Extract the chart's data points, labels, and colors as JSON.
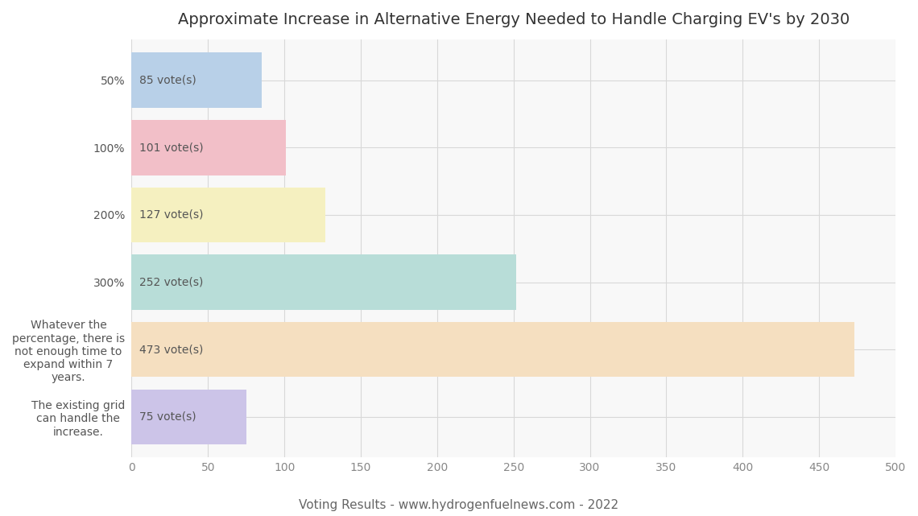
{
  "title": "Approximate Increase in Alternative Energy Needed to Handle Charging EV's by 2030",
  "footer": "Voting Results - www.hydrogenfuelnews.com - 2022",
  "categories": [
    "50%",
    "100%",
    "200%",
    "300%",
    "Whatever the\npercentage, there is\nnot enough time to\nexpand within 7\nyears.",
    "The existing grid\ncan handle the\nincrease."
  ],
  "values": [
    85,
    101,
    127,
    252,
    473,
    75
  ],
  "labels": [
    "85 vote(s)",
    "101 vote(s)",
    "127 vote(s)",
    "252 vote(s)",
    "473 vote(s)",
    "75 vote(s)"
  ],
  "bar_colors": [
    "#b8d0e8",
    "#f2bfc8",
    "#f5f0c0",
    "#b8ddd8",
    "#f5dfc0",
    "#ccc4e8"
  ],
  "xlim": [
    0,
    500
  ],
  "xticks": [
    0,
    50,
    100,
    150,
    200,
    250,
    300,
    350,
    400,
    450,
    500
  ],
  "plot_bg_color": "#f8f8f8",
  "fig_bg_color": "#ffffff",
  "grid_color": "#d8d8d8",
  "title_fontsize": 14,
  "label_fontsize": 10,
  "tick_fontsize": 10,
  "footer_fontsize": 11,
  "bar_height": 0.82
}
